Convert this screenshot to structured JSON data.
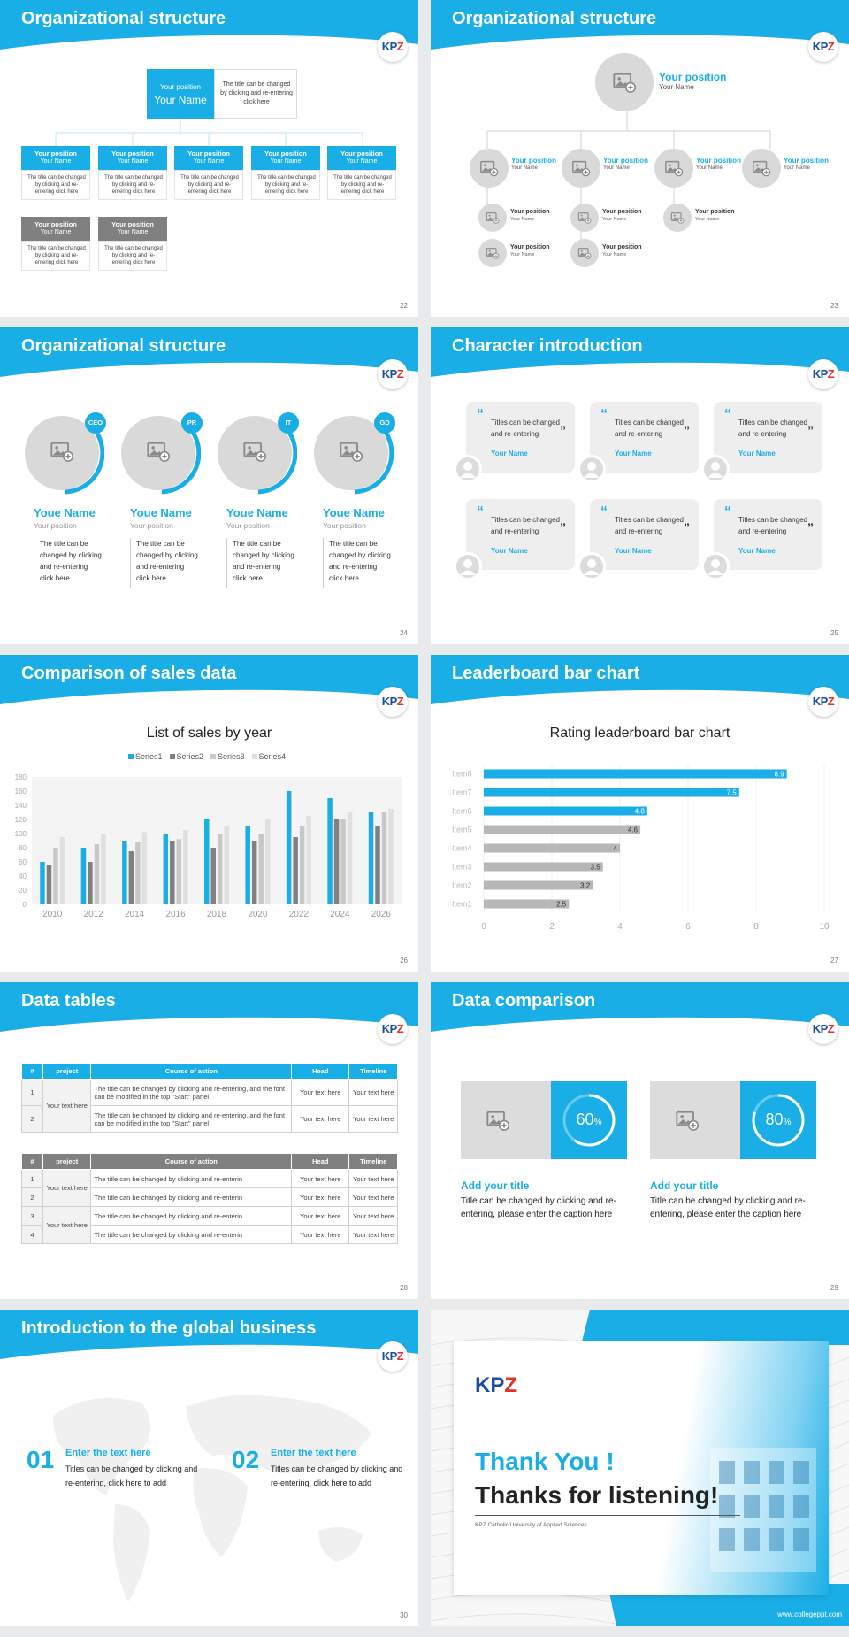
{
  "slides": {
    "s22": {
      "title": "Organizational structure",
      "page": "22",
      "top": {
        "position": "Your position",
        "name": "Your Name",
        "desc": "The title can be changed by clicking and re-entering click here"
      },
      "row_blue": [
        {
          "position": "Your position",
          "name": "Your Name",
          "desc": "The title can be changed by clicking and re-entering click here"
        },
        {
          "position": "Your position",
          "name": "Your Name",
          "desc": "The title can be changed by clicking and re-entering click here"
        },
        {
          "position": "Your position",
          "name": "Your Name",
          "desc": "The title can be changed by clicking and re-entering click here"
        },
        {
          "position": "Your position",
          "name": "Your Name",
          "desc": "The title can be changed by clicking and re-entering click here"
        },
        {
          "position": "Your position",
          "name": "Your Name",
          "desc": "The title can be changed by clicking and re-entering click here"
        }
      ],
      "row_gray": [
        {
          "position": "Your position",
          "name": "Your Name",
          "desc": "The title can be changed by clicking and re-entering click here"
        },
        {
          "position": "Your position",
          "name": "Your Name",
          "desc": "The title can be changed by clicking and re-entering click here"
        }
      ]
    },
    "s23": {
      "title": "Organizational structure",
      "page": "23",
      "top": {
        "position": "Your position",
        "name": "Your Name"
      },
      "level2": [
        {
          "position": "Your position",
          "name": "Your Name"
        },
        {
          "position": "Your position",
          "name": "Your Name"
        },
        {
          "position": "Your position",
          "name": "Your Name"
        },
        {
          "position": "Your position",
          "name": "Your Name"
        }
      ],
      "level3": [
        {
          "position": "Your position",
          "name": "Your Name"
        },
        {
          "position": "Your position",
          "name": "Your Name"
        },
        {
          "position": "Your position",
          "name": "Your Name"
        },
        {
          "position": "Your position",
          "name": "Your Name"
        },
        {
          "position": "Your position",
          "name": "Your Name"
        },
        {
          "position": "Your position",
          "name": "Your Name"
        }
      ]
    },
    "s24": {
      "title": "Organizational structure",
      "page": "24",
      "people": [
        {
          "badge": "CEO",
          "name": "Youe Name",
          "position": "Your position",
          "desc": "The title can be changed by clicking and re-entering click here"
        },
        {
          "badge": "PR",
          "name": "Youe Name",
          "position": "Your position",
          "desc": "The title can be changed by clicking and re-entering click here"
        },
        {
          "badge": "IT",
          "name": "Youe Name",
          "position": "Your position",
          "desc": "The title can be changed by clicking and re-entering click here"
        },
        {
          "badge": "GD",
          "name": "Youe Name",
          "position": "Your position",
          "desc": "The title can be changed by clicking and re-entering click here"
        }
      ]
    },
    "s25": {
      "title": "Character introduction",
      "page": "25",
      "quote_open": "“",
      "quote_close": "”",
      "cards": [
        {
          "text": "Titles can be changed and re-entering",
          "name": "Your Name"
        },
        {
          "text": "Titles can be changed and re-entering",
          "name": "Your Name"
        },
        {
          "text": "Titles can be changed and re-entering",
          "name": "Your Name"
        },
        {
          "text": "Titles can be changed and re-entering",
          "name": "Your Name"
        },
        {
          "text": "Titles can be changed and re-entering",
          "name": "Your Name"
        },
        {
          "text": "Titles can be changed and re-entering",
          "name": "Your Name"
        }
      ]
    },
    "s26": {
      "title": "Comparison of sales data",
      "page": "26"
    },
    "s27": {
      "title": "Leaderboard bar chart",
      "page": "27"
    },
    "s28": {
      "title": "Data tables",
      "page": "28",
      "headers": [
        "#",
        "project",
        "Course of action",
        "Head",
        "Timeline"
      ],
      "table1": {
        "project": "Your text here",
        "rows": [
          {
            "num": "1",
            "action": "The title can be changed by clicking and re-entering, and the font can be modified in the top \"Start\" panel",
            "head": "Your text here",
            "timeline": "Your text here"
          },
          {
            "num": "2",
            "action": "The title can be changed by clicking and re-entering, and the font can be modified in the top \"Start\" panel",
            "head": "Your text here",
            "timeline": "Your text here"
          }
        ]
      },
      "table2": {
        "projects": [
          "Your text here",
          "Your text here"
        ],
        "rows": [
          {
            "num": "1",
            "action": "The title can be changed by clicking and re-enterin",
            "head": "Your text here",
            "timeline": "Your text here"
          },
          {
            "num": "2",
            "action": "The title can be changed by clicking and re-enterin",
            "head": "Your text here",
            "timeline": "Your text here"
          },
          {
            "num": "3",
            "action": "The title can be changed by clicking and re-enterin",
            "head": "Your text here",
            "timeline": "Your text here"
          },
          {
            "num": "4",
            "action": "The title can be changed by clicking and re-enterin",
            "head": "Your text here",
            "timeline": "Your text here"
          }
        ]
      }
    },
    "s29": {
      "title": "Data comparison",
      "page": "29",
      "items": [
        {
          "percent": "60",
          "unit": "%",
          "value": 0.6,
          "heading": "Add your title",
          "text": "Title can be changed by clicking and re-entering, please enter the caption here"
        },
        {
          "percent": "80",
          "unit": "%",
          "value": 0.8,
          "heading": "Add your title",
          "text": "Title can be changed by clicking and re-entering, please enter the caption here"
        }
      ]
    },
    "s30": {
      "title": "Introduction to the global business",
      "page": "30",
      "items": [
        {
          "num": "01",
          "heading": "Enter the text here",
          "text": "Titles can be changed by clicking and re-entering, click here to add"
        },
        {
          "num": "02",
          "heading": "Enter the text here",
          "text": "Titles can be changed by clicking and re-entering, click here to add"
        }
      ]
    },
    "s31": {
      "thank": "Thank You !",
      "thanks": "Thanks for listening!",
      "university": "KPZ Catholic University of Applied Sciences",
      "url": "www.collegeppt.com"
    }
  },
  "logo": {
    "part1": "KP",
    "part2": "Z"
  },
  "colors": {
    "accent": "#1aaee7",
    "gray_bar": "#b7b7b7",
    "dark_gray": "#808080"
  },
  "chart_data": [
    {
      "type": "bar",
      "title": "List of sales by year",
      "categories": [
        "2010",
        "2012",
        "2014",
        "2016",
        "2018",
        "2020",
        "2022",
        "2024",
        "2026"
      ],
      "series": [
        {
          "name": "Series1",
          "color": "#1aaee7",
          "values": [
            60,
            80,
            90,
            100,
            120,
            110,
            160,
            150,
            130
          ]
        },
        {
          "name": "Series2",
          "color": "#808080",
          "values": [
            55,
            60,
            75,
            90,
            80,
            90,
            95,
            120,
            110
          ]
        },
        {
          "name": "Series3",
          "color": "#c8c8c8",
          "values": [
            80,
            85,
            88,
            92,
            100,
            100,
            110,
            120,
            130
          ]
        },
        {
          "name": "Series4",
          "color": "#e0e0e0",
          "values": [
            95,
            100,
            102,
            105,
            110,
            120,
            125,
            130,
            135
          ]
        }
      ],
      "yticks": [
        "0",
        "20",
        "40",
        "60",
        "80",
        "100",
        "120",
        "140",
        "160",
        "180"
      ],
      "ylim": [
        0,
        180
      ]
    },
    {
      "type": "bar",
      "orientation": "horizontal",
      "title": "Rating leaderboard bar chart",
      "categories": [
        "Item8",
        "Item7",
        "Item6",
        "Item5",
        "Item4",
        "Item3",
        "Item2",
        "Item1"
      ],
      "values": [
        8.9,
        7.5,
        4.8,
        4.6,
        4,
        3.5,
        3.2,
        2.5
      ],
      "labels": [
        "8.9",
        "7.5",
        "4.8",
        "4.6",
        "4",
        "3.5",
        "3.2",
        "2.5"
      ],
      "highlight_count": 3,
      "xticks": [
        "0",
        "2",
        "4",
        "6",
        "8",
        "10"
      ],
      "xlim": [
        0,
        10
      ]
    }
  ]
}
